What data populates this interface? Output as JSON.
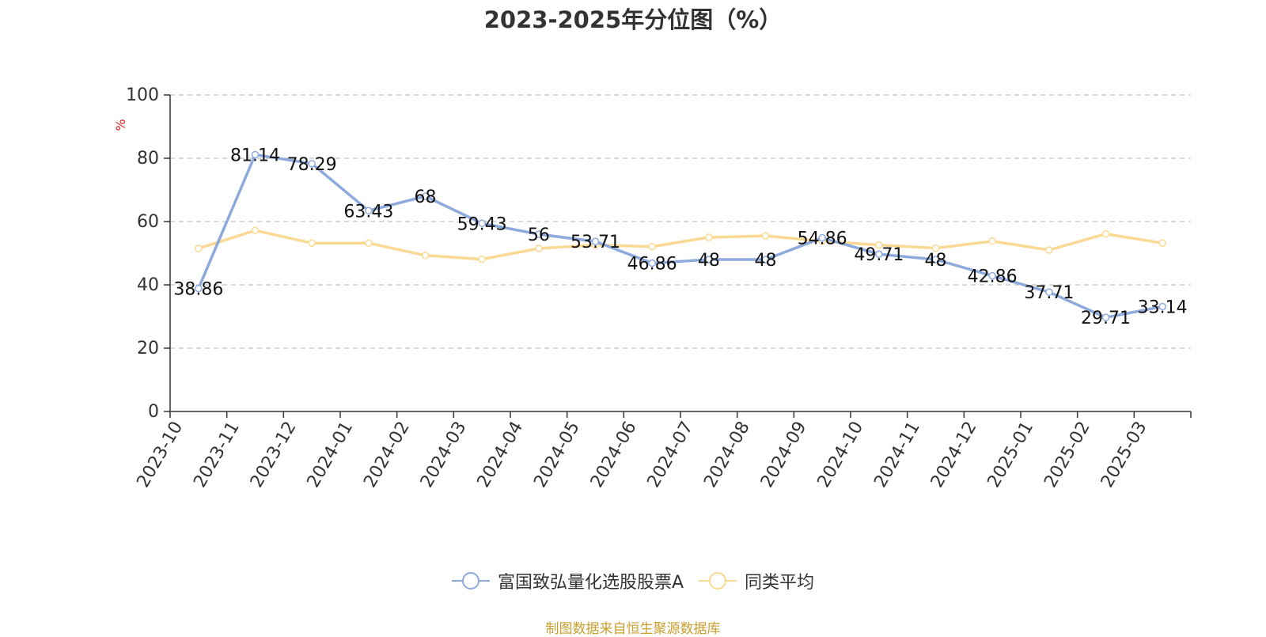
{
  "title": "2023-2025年分位图（%）",
  "source_note": "制图数据来自恒生聚源数据库",
  "chart_data": {
    "type": "line",
    "ylabel": "%",
    "ylim": [
      0,
      100
    ],
    "yticks": [
      0,
      20,
      40,
      60,
      80,
      100
    ],
    "grid": true,
    "legend_position": "bottom",
    "categories": [
      "2023-10",
      "2023-11",
      "2023-12",
      "2024-01",
      "2024-02",
      "2024-03",
      "2024-04",
      "2024-05",
      "2024-06",
      "2024-07",
      "2024-08",
      "2024-09",
      "2024-10",
      "2024-11",
      "2024-12",
      "2025-01",
      "2025-02",
      "2025-03"
    ],
    "series": [
      {
        "name": "富国致弘量化选股股票A",
        "color": "#8eaadc",
        "values": [
          38.86,
          81.14,
          78.29,
          63.43,
          68,
          59.43,
          56,
          53.71,
          46.86,
          48,
          48,
          54.86,
          49.71,
          48,
          42.86,
          37.71,
          29.71,
          33.14
        ],
        "labels": [
          "38.86",
          "81.14",
          "78.29",
          "63.43",
          "68",
          "59.43",
          "56",
          "53.71",
          "46.86",
          "48",
          "48",
          "54.86",
          "49.71",
          "48",
          "42.86",
          "37.71",
          "29.71",
          "33.14"
        ]
      },
      {
        "name": "同类平均",
        "color": "#fad994",
        "values": [
          51.5,
          57.2,
          53.2,
          53.2,
          49.3,
          48.1,
          51.5,
          52.6,
          52.1,
          55,
          55.5,
          53.8,
          52.6,
          51.6,
          53.8,
          51,
          56.1,
          53.2
        ]
      }
    ]
  }
}
